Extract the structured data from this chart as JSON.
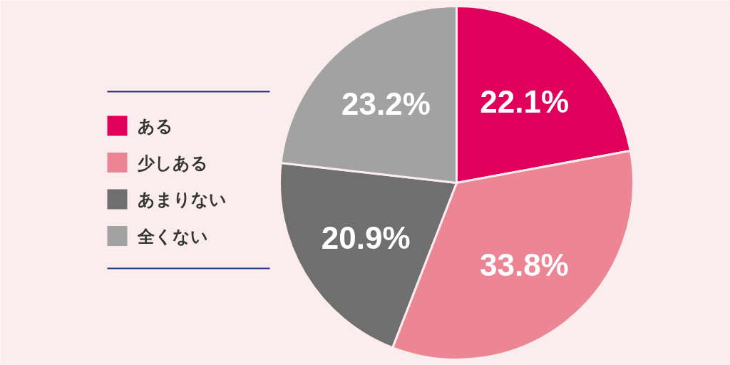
{
  "chart_data": {
    "type": "pie",
    "categories": [
      "ある",
      "少しある",
      "あまりない",
      "全くない"
    ],
    "values": [
      22.1,
      33.8,
      20.9,
      23.2
    ],
    "colors": [
      "#e0005b",
      "#ec8594",
      "#6f6f6f",
      "#a2a2a2"
    ],
    "value_labels": [
      "22.1%",
      "33.8%",
      "20.9%",
      "23.2%"
    ],
    "legend": "left"
  }
}
